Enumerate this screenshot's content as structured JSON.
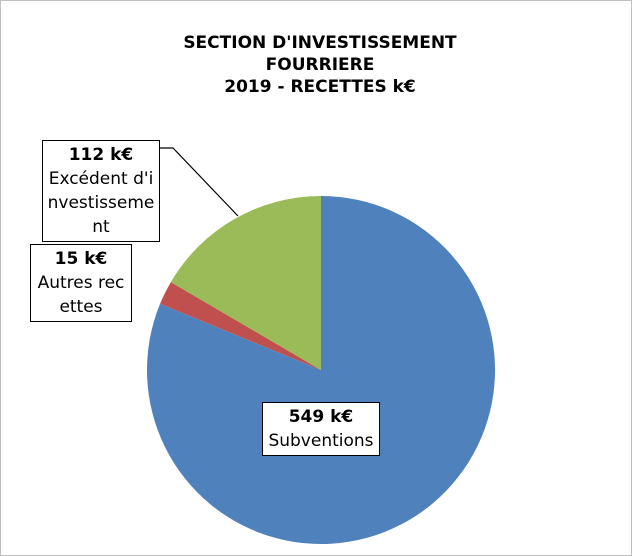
{
  "chart_data": {
    "type": "pie",
    "title": "SECTION D'INVESTISSEMENT\nFOURRIERE\n2019 - RECETTES k€",
    "categories": [
      "Subventions",
      "Autres recettes",
      "Excédent d'investissement"
    ],
    "values": [
      549,
      15,
      112
    ],
    "value_labels": [
      "549 k€",
      "15 k€",
      "112 k€"
    ],
    "colors": [
      "#4f81bd",
      "#c0504d",
      "#9bbb59"
    ]
  }
}
